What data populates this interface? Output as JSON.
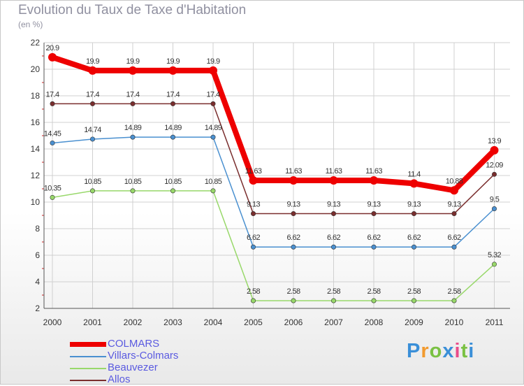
{
  "header": {
    "title": "Evolution du Taux de Taxe d'Habitation",
    "subtitle": "(en %)"
  },
  "brand": {
    "logo": "Proxiti",
    "colors": [
      "#3a8fd8",
      "#f29a2e",
      "#7ac143",
      "#3a8fd8",
      "#e94c8a",
      "#7ac143",
      "#3a8fd8"
    ]
  },
  "chart_data": {
    "type": "line",
    "title": "Evolution du Taux de Taxe d'Habitation",
    "ylabel": "(en %)",
    "xlabel": "",
    "ylim": [
      2,
      22
    ],
    "yticks": [
      "2",
      "4",
      "6",
      "8",
      "10",
      "12",
      "14",
      "16",
      "18",
      "20",
      "22"
    ],
    "categories": [
      "2000",
      "2001",
      "2002",
      "2003",
      "2004",
      "2005",
      "2006",
      "2007",
      "2008",
      "2009",
      "2010",
      "2011"
    ],
    "grid": true,
    "legend_position": "bottom-left",
    "series": [
      {
        "name": "COLMARS",
        "color": "#ee0000",
        "values": [
          20.9,
          19.9,
          19.9,
          19.9,
          19.9,
          11.63,
          11.63,
          11.63,
          11.63,
          11.4,
          10.88,
          13.9
        ],
        "labels": [
          "20.9",
          "19.9",
          "19.9",
          "19.9",
          "19.9",
          "11.63",
          "11.63",
          "11.63",
          "11.63",
          "11.4",
          "10.88",
          "13.9"
        ]
      },
      {
        "name": "Villars-Colmars",
        "color": "#4a90d0",
        "values": [
          14.45,
          14.74,
          14.89,
          14.89,
          14.89,
          6.62,
          6.62,
          6.62,
          6.62,
          6.62,
          6.62,
          9.5
        ],
        "labels": [
          "14.45",
          "14.74",
          "14.89",
          "14.89",
          "14.89",
          "6.62",
          "6.62",
          "6.62",
          "6.62",
          "6.62",
          "6.62",
          "9.5"
        ]
      },
      {
        "name": "Beauvezer",
        "color": "#98d86a",
        "values": [
          10.35,
          10.85,
          10.85,
          10.85,
          10.85,
          2.58,
          2.58,
          2.58,
          2.58,
          2.58,
          2.58,
          5.32
        ],
        "labels": [
          "10.35",
          "10.85",
          "10.85",
          "10.85",
          "10.85",
          "2.58",
          "2.58",
          "2.58",
          "2.58",
          "2.58",
          "2.58",
          "5.32"
        ]
      },
      {
        "name": "Allos",
        "color": "#7a2e2e",
        "values": [
          17.4,
          17.4,
          17.4,
          17.4,
          17.4,
          9.13,
          9.13,
          9.13,
          9.13,
          9.13,
          9.13,
          12.09
        ],
        "labels": [
          "17.4",
          "17.4",
          "17.4",
          "17.4",
          "17.4",
          "9.13",
          "9.13",
          "9.13",
          "9.13",
          "9.13",
          "9.13",
          "12.09"
        ]
      }
    ]
  }
}
